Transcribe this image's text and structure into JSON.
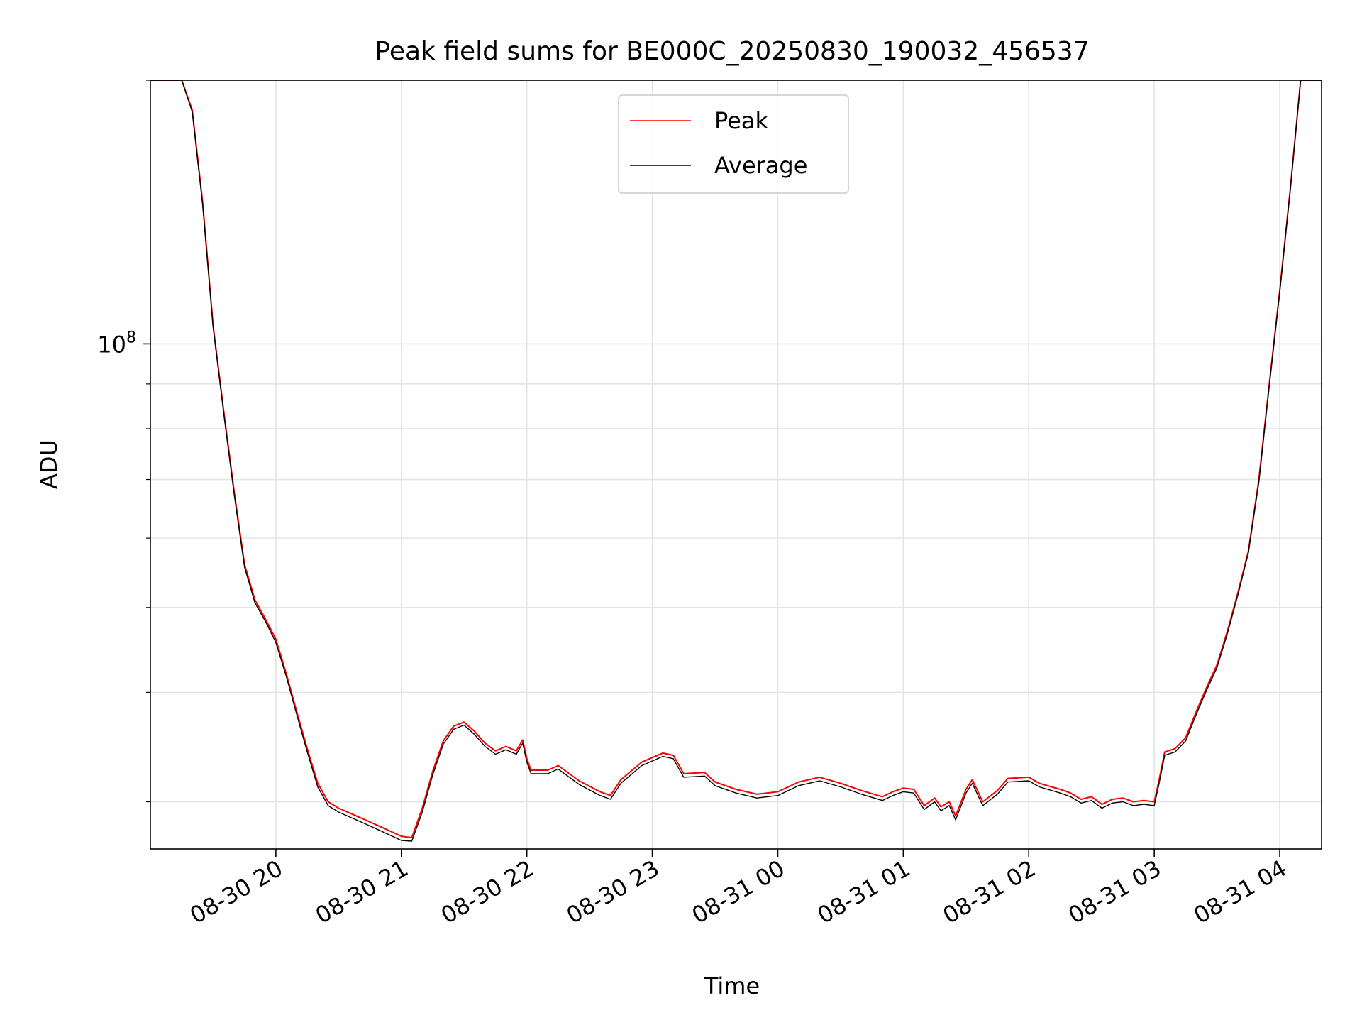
{
  "chart_data": {
    "type": "line",
    "title": "Peak field sums for BE000C_20250830_190032_456537",
    "xlabel": "Time",
    "ylabel": "ADU",
    "y_scale": "log",
    "grid": true,
    "legend_placement": "upper-center",
    "xlim": [
      "2025-08-30 19:00",
      "2025-08-31 04:20"
    ],
    "ylim": [
      26500000,
      200000000
    ],
    "x_ticks": [
      "2025-08-30 20:00",
      "2025-08-30 21:00",
      "2025-08-30 22:00",
      "2025-08-30 23:00",
      "2025-08-31 00:00",
      "2025-08-31 01:00",
      "2025-08-31 02:00",
      "2025-08-31 03:00",
      "2025-08-31 04:00"
    ],
    "x_tick_labels": [
      "08-30 20",
      "08-30 21",
      "08-30 22",
      "08-30 23",
      "08-31 00",
      "08-31 01",
      "08-31 02",
      "08-31 03",
      "08-31 04"
    ],
    "y_ticks": [
      100000000
    ],
    "y_tick_label_base": "10",
    "y_tick_label_exp": "8",
    "x": [
      "2025-08-30 19:00",
      "2025-08-30 19:15",
      "2025-08-30 19:20",
      "2025-08-30 19:25",
      "2025-08-30 19:30",
      "2025-08-30 19:35",
      "2025-08-30 19:40",
      "2025-08-30 19:45",
      "2025-08-30 19:50",
      "2025-08-30 19:55",
      "2025-08-30 20:00",
      "2025-08-30 20:05",
      "2025-08-30 20:10",
      "2025-08-30 20:15",
      "2025-08-30 20:20",
      "2025-08-30 20:25",
      "2025-08-30 20:30",
      "2025-08-30 20:40",
      "2025-08-30 20:50",
      "2025-08-30 21:00",
      "2025-08-30 21:05",
      "2025-08-30 21:10",
      "2025-08-30 21:15",
      "2025-08-30 21:20",
      "2025-08-30 21:25",
      "2025-08-30 21:30",
      "2025-08-30 21:35",
      "2025-08-30 21:40",
      "2025-08-30 21:45",
      "2025-08-30 21:50",
      "2025-08-30 21:55",
      "2025-08-30 21:58",
      "2025-08-30 22:00",
      "2025-08-30 22:02",
      "2025-08-30 22:10",
      "2025-08-30 22:15",
      "2025-08-30 22:25",
      "2025-08-30 22:35",
      "2025-08-30 22:40",
      "2025-08-30 22:45",
      "2025-08-30 22:55",
      "2025-08-30 23:05",
      "2025-08-30 23:10",
      "2025-08-30 23:15",
      "2025-08-30 23:25",
      "2025-08-30 23:30",
      "2025-08-30 23:40",
      "2025-08-30 23:50",
      "2025-08-31 00:00",
      "2025-08-31 00:10",
      "2025-08-31 00:20",
      "2025-08-31 00:30",
      "2025-08-31 00:40",
      "2025-08-31 00:50",
      "2025-08-31 00:55",
      "2025-08-31 01:00",
      "2025-08-31 01:05",
      "2025-08-31 01:10",
      "2025-08-31 01:15",
      "2025-08-31 01:18",
      "2025-08-31 01:22",
      "2025-08-31 01:25",
      "2025-08-31 01:30",
      "2025-08-31 01:33",
      "2025-08-31 01:38",
      "2025-08-31 01:45",
      "2025-08-31 01:50",
      "2025-08-31 02:00",
      "2025-08-31 02:05",
      "2025-08-31 02:15",
      "2025-08-31 02:20",
      "2025-08-31 02:25",
      "2025-08-31 02:30",
      "2025-08-31 02:35",
      "2025-08-31 02:40",
      "2025-08-31 02:45",
      "2025-08-31 02:50",
      "2025-08-31 02:55",
      "2025-08-31 03:00",
      "2025-08-31 03:02",
      "2025-08-31 03:05",
      "2025-08-31 03:10",
      "2025-08-31 03:15",
      "2025-08-31 03:20",
      "2025-08-31 03:25",
      "2025-08-31 03:30",
      "2025-08-31 03:35",
      "2025-08-31 03:40",
      "2025-08-31 03:45",
      "2025-08-31 03:50",
      "2025-08-31 03:55",
      "2025-08-31 04:00",
      "2025-08-31 04:05",
      "2025-08-31 04:10",
      "2025-08-31 04:20"
    ],
    "series": [
      {
        "name": "Peak",
        "color": "#ff0000",
        "values": [
          200000000,
          200000000,
          185000000,
          145000000,
          105000000,
          84000000,
          68000000,
          56000000,
          51000000,
          48500000,
          46000000,
          42000000,
          38000000,
          34500000,
          31500000,
          30000000,
          29500000,
          28800000,
          28100000,
          27400000,
          27300000,
          29500000,
          32500000,
          35200000,
          36600000,
          37000000,
          36100000,
          35000000,
          34300000,
          34700000,
          34300000,
          35300000,
          33600000,
          32600000,
          32600000,
          33000000,
          31700000,
          30800000,
          30500000,
          31800000,
          33300000,
          34100000,
          33900000,
          32300000,
          32400000,
          31600000,
          31000000,
          30600000,
          30800000,
          31600000,
          32000000,
          31500000,
          30900000,
          30400000,
          30800000,
          31100000,
          31000000,
          29700000,
          30300000,
          29600000,
          30000000,
          28900000,
          31000000,
          31800000,
          30000000,
          30900000,
          31900000,
          32000000,
          31500000,
          31000000,
          30700000,
          30200000,
          30400000,
          29800000,
          30200000,
          30300000,
          30000000,
          30100000,
          30000000,
          31500000,
          34200000,
          34500000,
          35500000,
          38000000,
          40500000,
          43000000,
          47000000,
          52000000,
          58000000,
          70000000,
          90000000,
          115000000,
          150000000,
          200000000,
          200000000
        ]
      },
      {
        "name": "Average",
        "color": "#000000",
        "values": [
          200000000,
          200000000,
          184000000,
          144000000,
          104500000,
          83500000,
          67500000,
          55600000,
          50600000,
          48200000,
          45600000,
          41700000,
          37700000,
          34200000,
          31200000,
          29700000,
          29200000,
          28500000,
          27800000,
          27100000,
          27050000,
          29200000,
          32200000,
          34900000,
          36300000,
          36700000,
          35800000,
          34700000,
          34000000,
          34400000,
          34000000,
          35000000,
          33300000,
          32300000,
          32300000,
          32700000,
          31400000,
          30500000,
          30200000,
          31500000,
          33000000,
          33800000,
          33600000,
          32000000,
          32100000,
          31300000,
          30700000,
          30300000,
          30500000,
          31300000,
          31700000,
          31200000,
          30600000,
          30100000,
          30500000,
          30800000,
          30700000,
          29400000,
          30000000,
          29300000,
          29700000,
          28600000,
          30700000,
          31500000,
          29700000,
          30600000,
          31600000,
          31700000,
          31200000,
          30700000,
          30400000,
          29900000,
          30100000,
          29500000,
          29900000,
          30000000,
          29700000,
          29800000,
          29700000,
          31200000,
          33900000,
          34200000,
          35200000,
          37700000,
          40200000,
          42700000,
          46700000,
          51700000,
          57700000,
          69500000,
          89500000,
          114500000,
          149500000,
          200000000,
          200000000
        ]
      }
    ]
  }
}
